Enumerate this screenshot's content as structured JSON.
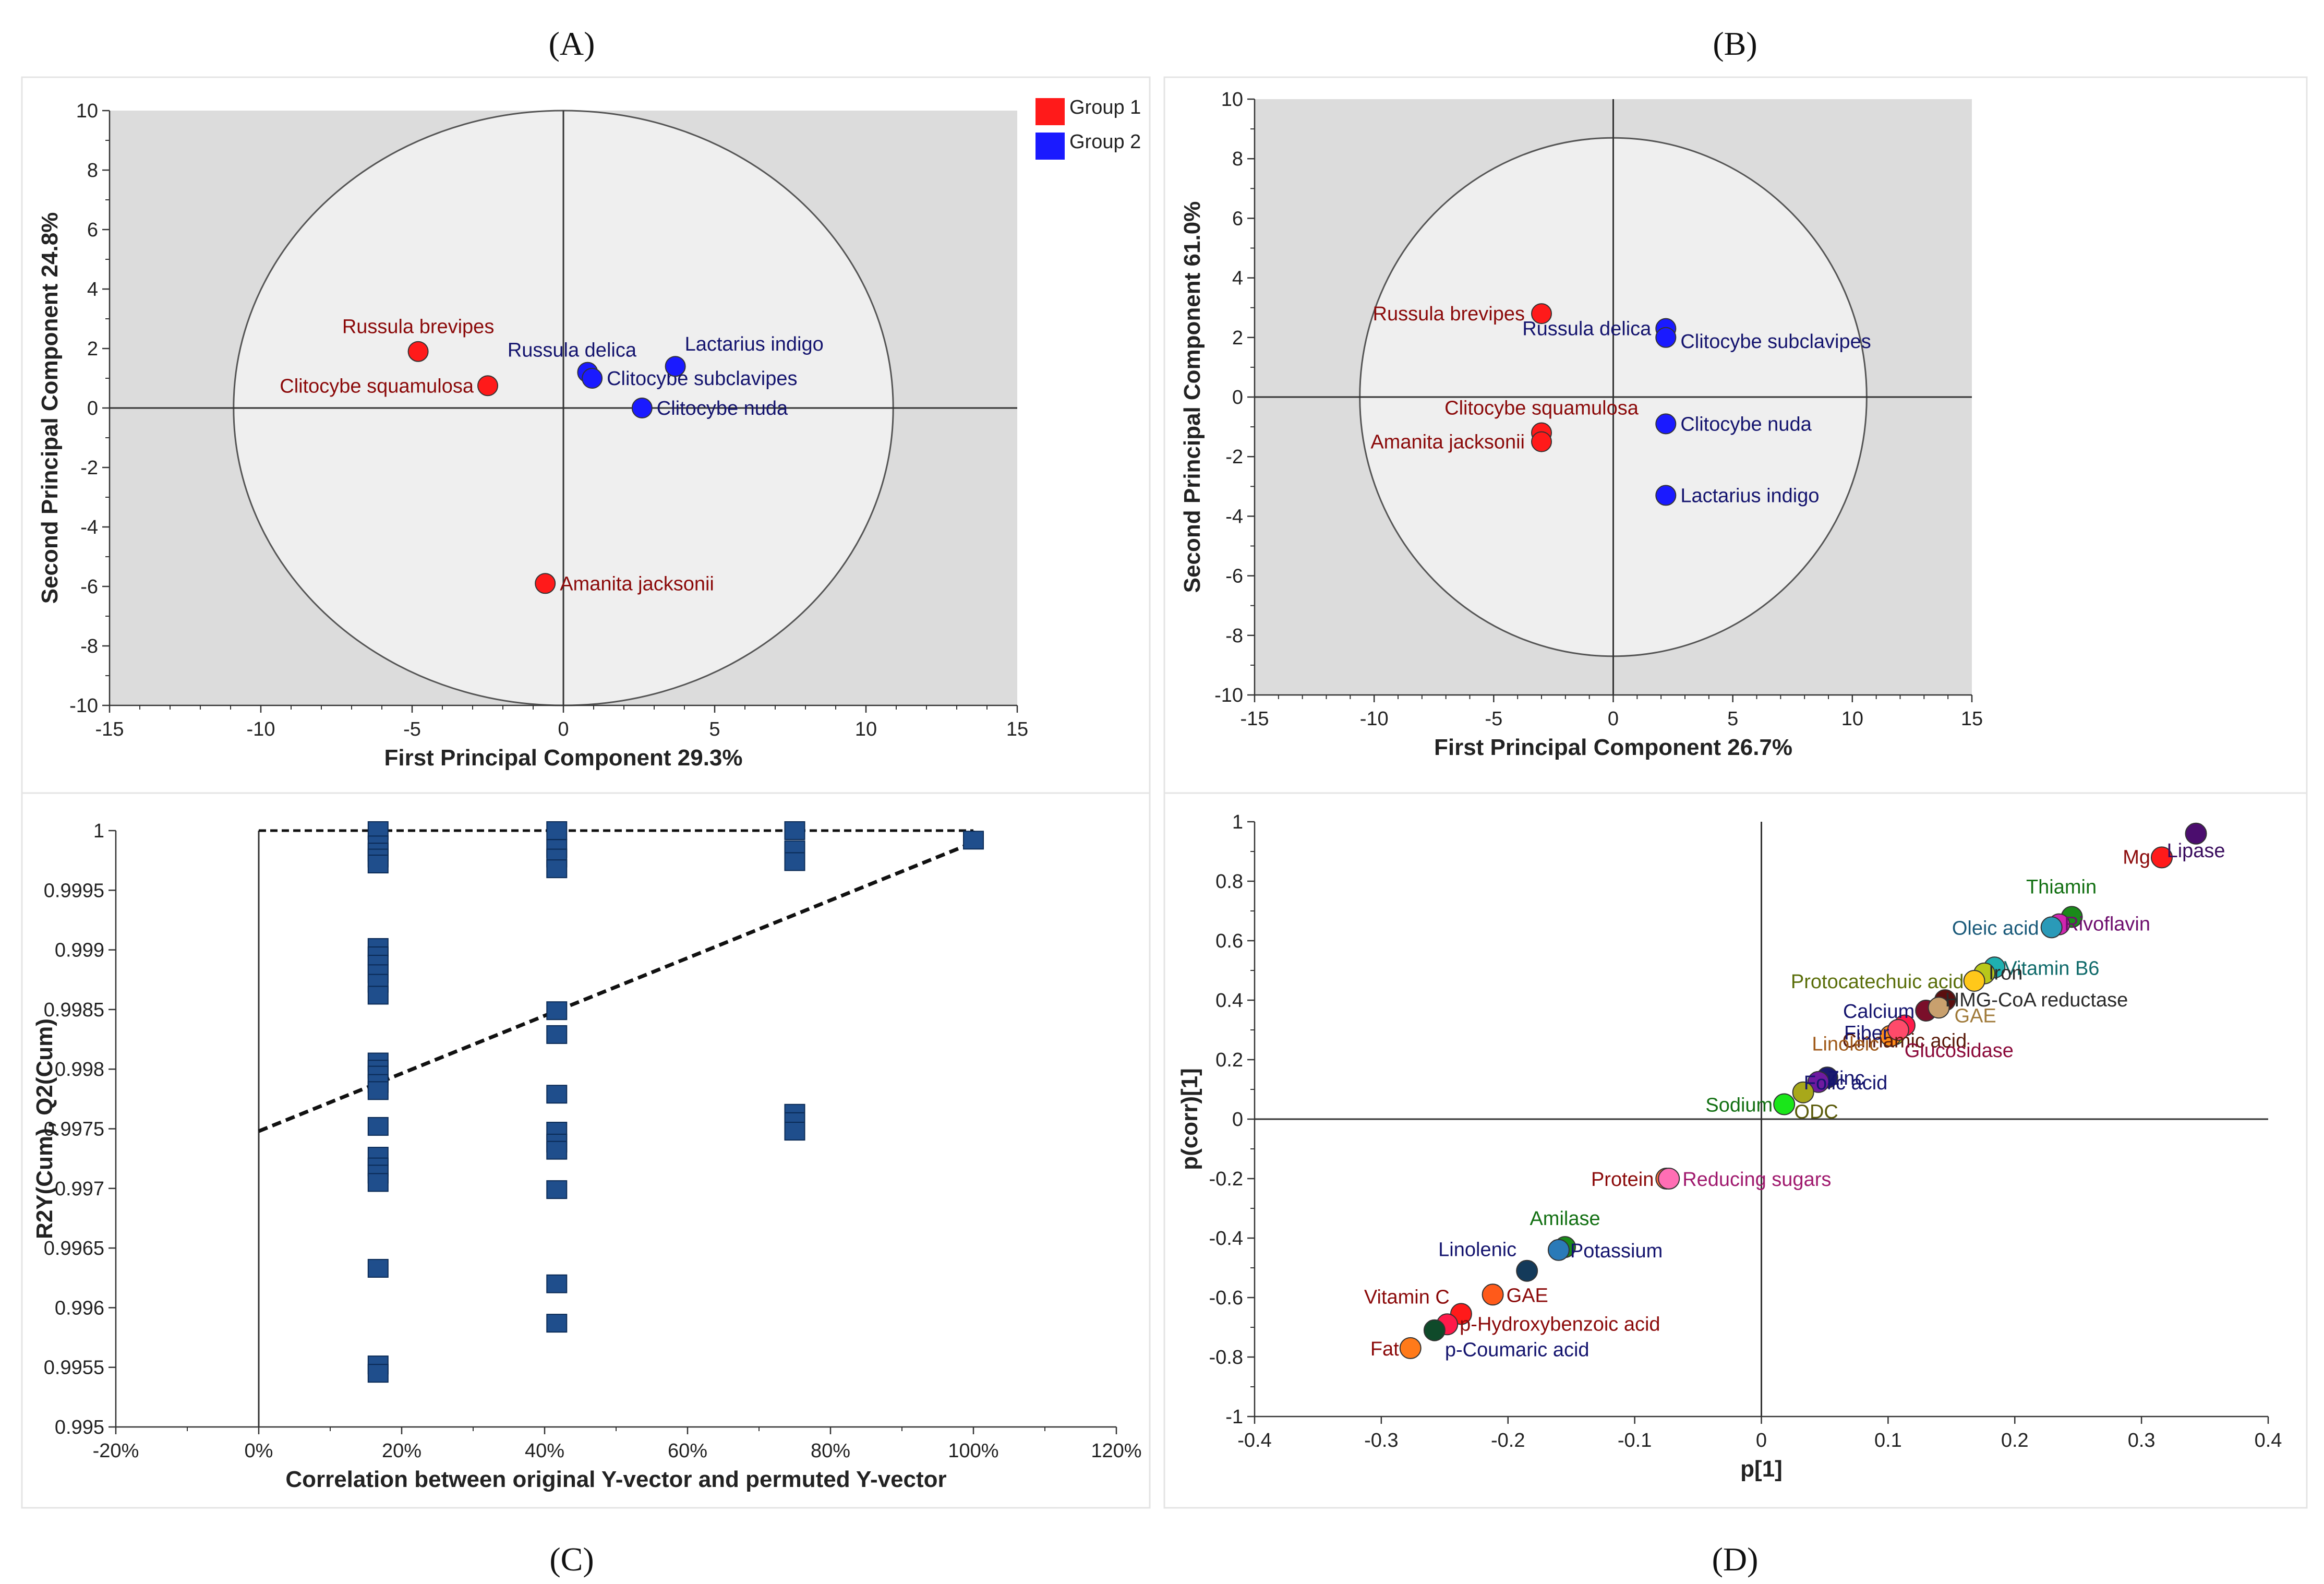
{
  "panel_labels": {
    "A": "(A)",
    "B": "(B)",
    "C": "(C)",
    "D": "(D)"
  },
  "colors": {
    "group1": "#ff1a1a",
    "group2": "#1a1aff",
    "group1_text": "#8b0a0a",
    "group2_text": "#14146e",
    "bar": "#1f4e8c"
  },
  "chart_data": [
    {
      "id": "A",
      "type": "scatter",
      "title": "",
      "xlabel": "First Principal Component 29.3%",
      "ylabel": "Second Principal Component 24.8%",
      "xlim": [
        -15,
        15
      ],
      "ylim": [
        -10,
        10
      ],
      "xticks": [
        -15,
        -10,
        -5,
        0,
        5,
        10,
        15
      ],
      "yticks": [
        -10,
        -8,
        -6,
        -4,
        -2,
        0,
        2,
        4,
        6,
        8,
        10
      ],
      "legend": [
        {
          "name": "Group 1",
          "color": "#ff1a1a"
        },
        {
          "name": "Group 2",
          "color": "#1a1aff"
        }
      ],
      "ellipse": {
        "cx": 0,
        "cy": 0,
        "rx": 10.9,
        "ry": 10
      },
      "points": [
        {
          "label": "Russula brevipes",
          "x": -4.8,
          "y": 1.9,
          "group": 1
        },
        {
          "label": "Clitocybe  squamulosa",
          "x": -2.5,
          "y": 0.75,
          "group": 1
        },
        {
          "label": "Amanita jacksonii",
          "x": -0.6,
          "y": -5.9,
          "group": 1
        },
        {
          "label": "Russula delica",
          "x": 0.8,
          "y": 1.2,
          "group": 2
        },
        {
          "label": "Clitocybe subclavipes",
          "x": 0.95,
          "y": 1.0,
          "group": 2
        },
        {
          "label": "Lactarius indigo",
          "x": 3.7,
          "y": 1.4,
          "group": 2
        },
        {
          "label": "Clitocybe nuda",
          "x": 2.6,
          "y": 0.0,
          "group": 2
        }
      ]
    },
    {
      "id": "B",
      "type": "scatter",
      "title": "",
      "xlabel": "First Principal Component 26.7%",
      "ylabel": "Second Principal Component 61.0%",
      "xlim": [
        -15,
        15
      ],
      "ylim": [
        -10,
        10
      ],
      "xticks": [
        -15,
        -10,
        -5,
        0,
        5,
        10,
        15
      ],
      "yticks": [
        -10,
        -8,
        -6,
        -4,
        -2,
        0,
        2,
        4,
        6,
        8,
        10
      ],
      "ellipse": {
        "cx": 0,
        "cy": 0,
        "rx": 10.6,
        "ry": 8.7
      },
      "points": [
        {
          "label": "Russula brevipes",
          "x": -3.0,
          "y": 2.8,
          "group": 1
        },
        {
          "label": "Clitocybe  squamulosa",
          "x": -3.0,
          "y": -1.2,
          "group": 1
        },
        {
          "label": "Amanita jacksonii",
          "x": -3.0,
          "y": -1.5,
          "group": 1
        },
        {
          "label": "Russula delica",
          "x": 2.2,
          "y": 2.3,
          "group": 2
        },
        {
          "label": "Clitocybe subclavipes",
          "x": 2.2,
          "y": 2.0,
          "group": 2
        },
        {
          "label": "Clitocybe nuda",
          "x": 2.2,
          "y": -0.9,
          "group": 2
        },
        {
          "label": "Lactarius indigo",
          "x": 2.2,
          "y": -3.3,
          "group": 2
        }
      ]
    },
    {
      "id": "C",
      "type": "scatter",
      "title": "",
      "xlabel": "Correlation between original Y-vector and permuted Y-vector",
      "ylabel": "R2Y(Cum), Q2(Cum)",
      "xlim": [
        -20,
        120
      ],
      "ylim": [
        0.995,
        1.0
      ],
      "xticks": [
        -20,
        0,
        20,
        40,
        60,
        80,
        100,
        120
      ],
      "xtick_labels": [
        "-20%",
        "0%",
        "20%",
        "40%",
        "60%",
        "80%",
        "100%",
        "120%"
      ],
      "yticks": [
        0.995,
        0.9955,
        0.996,
        0.9965,
        0.997,
        0.9975,
        0.998,
        0.9985,
        0.999,
        0.9995,
        1
      ],
      "ytick_labels": [
        "0.995",
        "0.9955",
        "0.996",
        "0.9965",
        "0.997",
        "0.9975",
        "0.998",
        "0.9985",
        "0.999",
        "0.9995",
        "1"
      ],
      "regression_line": [
        {
          "x": 0,
          "y": 0.99748
        },
        {
          "x": 100,
          "y": 0.9999
        }
      ],
      "reference_line_y": 1.0,
      "x_groups": [
        {
          "x": 16.7,
          "y": [
            1.0,
            0.99988,
            0.99982,
            0.99977,
            0.99972,
            0.99902,
            0.99895,
            0.99888,
            0.9988,
            0.99872,
            0.99862,
            0.99806,
            0.998,
            0.99795,
            0.99788,
            0.99782,
            0.99752,
            0.99727,
            0.99718,
            0.99712,
            0.99705,
            0.99633,
            0.99552,
            0.99545
          ]
        },
        {
          "x": 41.7,
          "y": [
            1.0,
            0.99985,
            0.99977,
            0.99968,
            0.99849,
            0.99829,
            0.99779,
            0.99748,
            0.99738,
            0.99732,
            0.99699,
            0.9962,
            0.99587
          ]
        },
        {
          "x": 75,
          "y": [
            1.0,
            0.99984,
            0.99974,
            0.99763,
            0.99756,
            0.99748
          ]
        },
        {
          "x": 100,
          "y": [
            0.99992
          ]
        }
      ]
    },
    {
      "id": "D",
      "type": "scatter",
      "title": "",
      "xlabel": "p[1]",
      "ylabel": "p(corr)[1]",
      "xlim": [
        -0.4,
        0.4
      ],
      "ylim": [
        -1,
        1
      ],
      "xticks": [
        -0.4,
        -0.3,
        -0.2,
        -0.1,
        0,
        0.1,
        0.2,
        0.3,
        0.4
      ],
      "xtick_labels": [
        "-0.4",
        "-0.3",
        "-0.2",
        "-0.1",
        "0",
        "0.1",
        "0.2",
        "0.3",
        "0.4"
      ],
      "yticks": [
        -1,
        -0.8,
        -0.6,
        -0.4,
        -0.2,
        0,
        0.2,
        0.4,
        0.6,
        0.8,
        1
      ],
      "ytick_labels": [
        "-1",
        "-0.8",
        "-0.6",
        "-0.4",
        "-0.2",
        "0",
        "0.2",
        "0.4",
        "0.6",
        "0.8",
        "1"
      ],
      "points": [
        {
          "label": "Lipase",
          "x": 0.343,
          "y": 0.96,
          "color": "#4b0d6e",
          "text_color": "#3a0d5e"
        },
        {
          "label": "Mg",
          "x": 0.316,
          "y": 0.88,
          "color": "#ff1a1a",
          "text_color": "#8b0a0a"
        },
        {
          "label": "Thiamin",
          "x": 0.245,
          "y": 0.68,
          "color": "#1a8a1a",
          "text_color": "#137013"
        },
        {
          "label": "Rivoflavin",
          "x": 0.235,
          "y": 0.655,
          "color": "#d026b0",
          "text_color": "#6e0e6e"
        },
        {
          "label": "Oleic acid",
          "x": 0.229,
          "y": 0.645,
          "color": "#2a9ab8",
          "text_color": "#1a5a7a"
        },
        {
          "label": "Vitamin B6",
          "x": 0.184,
          "y": 0.51,
          "color": "#1fb0b0",
          "text_color": "#0f6a6a"
        },
        {
          "label": "Iron",
          "x": 0.176,
          "y": 0.49,
          "color": "#b8c81a",
          "text_color": "#2a2a2a"
        },
        {
          "label": "Protocatechuic acid",
          "x": 0.168,
          "y": 0.465,
          "color": "#ffc81a",
          "text_color": "#5a6e0a"
        },
        {
          "label": "HMG-CoA reductase",
          "x": 0.145,
          "y": 0.4,
          "color": "#5a0f0f",
          "text_color": "#2a2a2a"
        },
        {
          "label": "Calcium",
          "x": 0.13,
          "y": 0.365,
          "color": "#7a0f2a",
          "text_color": "#14146e"
        },
        {
          "label": "GAE",
          "x": 0.14,
          "y": 0.375,
          "color": "#c8a06e",
          "text_color": "#a07a3a"
        },
        {
          "label": "Cinnamic acid",
          "x": 0.113,
          "y": 0.315,
          "color": "#ff1a4a",
          "text_color": "#5a1a0a"
        },
        {
          "label": "Fiber",
          "x": 0.105,
          "y": 0.285,
          "color": "#c8c81a",
          "text_color": "#14146e"
        },
        {
          "label": "Linoleic",
          "x": 0.102,
          "y": 0.28,
          "color": "#ff8c1a",
          "text_color": "#a05a1a"
        },
        {
          "label": "Glucosidase",
          "x": 0.108,
          "y": 0.3,
          "color": "#ff4a6a",
          "text_color": "#8b0a3a"
        },
        {
          "label": "Zinc",
          "x": 0.052,
          "y": 0.14,
          "color": "#1a1a6e",
          "text_color": "#14146e"
        },
        {
          "label": "Folic acid",
          "x": 0.045,
          "y": 0.125,
          "color": "#6e1aa0",
          "text_color": "#14146e"
        },
        {
          "label": "ODC",
          "x": 0.033,
          "y": 0.09,
          "color": "#a8a81a",
          "text_color": "#5a5a0a"
        },
        {
          "label": "Sodium",
          "x": 0.018,
          "y": 0.05,
          "color": "#1ae61a",
          "text_color": "#137013"
        },
        {
          "label": "Protein",
          "x": -0.075,
          "y": -0.2,
          "color": "#ff6e3a",
          "text_color": "#8b0a0a"
        },
        {
          "label": "Reducing sugars",
          "x": -0.073,
          "y": -0.2,
          "color": "#ff6eb4",
          "text_color": "#a01a6e"
        },
        {
          "label": "Amilase",
          "x": -0.155,
          "y": -0.43,
          "color": "#1a8a1a",
          "text_color": "#137013"
        },
        {
          "label": "Potassium",
          "x": -0.16,
          "y": -0.44,
          "color": "#2a7ab8",
          "text_color": "#14146e"
        },
        {
          "label": "Linolenic",
          "x": -0.185,
          "y": -0.51,
          "color": "#143a5a",
          "text_color": "#14146e"
        },
        {
          "label": "GAE",
          "x": -0.212,
          "y": -0.59,
          "color": "#ff5a1a",
          "text_color": "#8b0a0a"
        },
        {
          "label": "Vitamin C",
          "x": -0.237,
          "y": -0.655,
          "color": "#ff1a1a",
          "text_color": "#8b0a0a"
        },
        {
          "label": "p-Hydroxybenzoic acid",
          "x": -0.248,
          "y": -0.69,
          "color": "#ff1a4a",
          "text_color": "#8b0a0a"
        },
        {
          "label": "p-Coumaric acid",
          "x": -0.258,
          "y": -0.71,
          "color": "#0f4a2a",
          "text_color": "#14146e"
        },
        {
          "label": "Fat",
          "x": -0.277,
          "y": -0.77,
          "color": "#ff7a1a",
          "text_color": "#8b0a0a"
        }
      ]
    }
  ]
}
